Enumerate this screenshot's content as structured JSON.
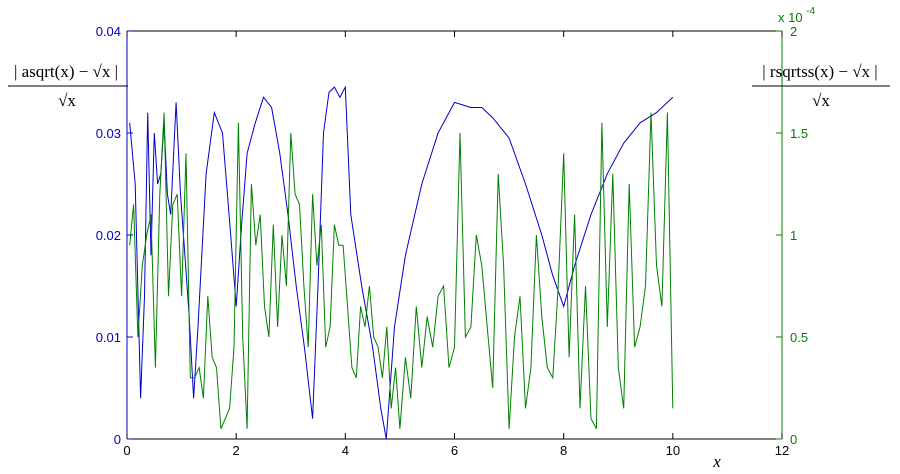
{
  "chart_data": {
    "type": "line",
    "xlabel": "x",
    "xlim": [
      0,
      12
    ],
    "x_ticks": [
      "0",
      "2",
      "4",
      "6",
      "8",
      "10",
      "12"
    ],
    "left_axis": {
      "ylim": [
        0,
        0.04
      ],
      "ticks": [
        "0",
        "0.01",
        "0.02",
        "0.03",
        "0.04"
      ],
      "color": "#0000cc",
      "label": {
        "numerator": "| asqrt(x) − √x |",
        "denominator": "√x"
      }
    },
    "right_axis": {
      "ylim": [
        0,
        2
      ],
      "ticks": [
        "0",
        "0.5",
        "1",
        "1.5",
        "2"
      ],
      "color": "#008000",
      "exponent": "x 10",
      "exponent_power": "-4",
      "label": {
        "numerator": "| rsqrtss(x) − √x |",
        "denominator": "√x"
      }
    },
    "series": [
      {
        "color": "#0000cc",
        "axis": "left",
        "x": [
          0.05,
          0.15,
          0.25,
          0.32,
          0.38,
          0.44,
          0.5,
          0.56,
          0.62,
          0.68,
          0.74,
          0.8,
          0.9,
          0.98,
          1.06,
          1.14,
          1.22,
          1.3,
          1.45,
          1.6,
          1.75,
          1.9,
          2.0,
          2.1,
          2.2,
          2.35,
          2.5,
          2.65,
          2.8,
          2.95,
          3.1,
          3.25,
          3.4,
          3.5,
          3.6,
          3.7,
          3.8,
          3.9,
          4.0,
          4.1,
          4.3,
          4.5,
          4.65,
          4.75,
          4.9,
          5.1,
          5.4,
          5.7,
          6.0,
          6.3,
          6.5,
          6.7,
          7.0,
          7.3,
          7.6,
          7.8,
          8.0,
          8.2,
          8.5,
          8.8,
          9.1,
          9.4,
          9.7,
          10.0
        ],
        "y": [
          0.031,
          0.025,
          0.004,
          0.014,
          0.032,
          0.018,
          0.03,
          0.025,
          0.026,
          0.031,
          0.024,
          0.022,
          0.033,
          0.024,
          0.018,
          0.012,
          0.004,
          0.011,
          0.026,
          0.032,
          0.03,
          0.02,
          0.013,
          0.021,
          0.028,
          0.031,
          0.0335,
          0.0325,
          0.028,
          0.022,
          0.015,
          0.009,
          0.002,
          0.015,
          0.03,
          0.034,
          0.0345,
          0.0335,
          0.0345,
          0.022,
          0.015,
          0.009,
          0.003,
          0.0,
          0.011,
          0.018,
          0.025,
          0.03,
          0.033,
          0.0325,
          0.0325,
          0.0315,
          0.0295,
          0.025,
          0.02,
          0.016,
          0.013,
          0.017,
          0.022,
          0.026,
          0.029,
          0.031,
          0.032,
          0.0335
        ]
      },
      {
        "color": "#008000",
        "axis": "right",
        "x": [
          0.05,
          0.12,
          0.2,
          0.28,
          0.36,
          0.44,
          0.52,
          0.6,
          0.68,
          0.76,
          0.84,
          0.92,
          1.0,
          1.08,
          1.16,
          1.24,
          1.32,
          1.4,
          1.48,
          1.56,
          1.64,
          1.72,
          1.8,
          1.88,
          1.96,
          2.04,
          2.12,
          2.2,
          2.28,
          2.36,
          2.44,
          2.52,
          2.6,
          2.68,
          2.76,
          2.84,
          2.92,
          3.0,
          3.08,
          3.16,
          3.24,
          3.32,
          3.4,
          3.48,
          3.56,
          3.64,
          3.72,
          3.8,
          3.88,
          3.96,
          4.04,
          4.12,
          4.2,
          4.28,
          4.36,
          4.44,
          4.52,
          4.6,
          4.68,
          4.76,
          4.84,
          4.92,
          5.0,
          5.1,
          5.2,
          5.3,
          5.4,
          5.5,
          5.6,
          5.7,
          5.8,
          5.9,
          6.0,
          6.1,
          6.2,
          6.3,
          6.4,
          6.5,
          6.6,
          6.7,
          6.8,
          6.9,
          7.0,
          7.1,
          7.2,
          7.3,
          7.4,
          7.5,
          7.6,
          7.7,
          7.8,
          7.9,
          8.0,
          8.1,
          8.2,
          8.3,
          8.4,
          8.5,
          8.6,
          8.7,
          8.8,
          8.9,
          9.0,
          9.1,
          9.2,
          9.3,
          9.4,
          9.5,
          9.6,
          9.7,
          9.8,
          9.9,
          10.0
        ],
        "y": [
          0.95,
          1.15,
          0.5,
          0.85,
          1.0,
          1.1,
          0.35,
          1.2,
          1.6,
          0.7,
          1.15,
          1.2,
          0.7,
          1.4,
          0.3,
          0.3,
          0.35,
          0.2,
          0.7,
          0.4,
          0.35,
          0.05,
          0.1,
          0.15,
          0.45,
          1.55,
          0.5,
          0.05,
          1.25,
          0.95,
          1.1,
          0.65,
          0.5,
          1.05,
          0.55,
          1.0,
          0.75,
          1.5,
          1.2,
          1.15,
          0.75,
          0.45,
          1.2,
          0.85,
          1.05,
          0.45,
          0.55,
          1.05,
          0.95,
          0.95,
          0.65,
          0.35,
          0.3,
          0.65,
          0.55,
          0.75,
          0.5,
          0.45,
          0.3,
          0.55,
          0.15,
          0.35,
          0.05,
          0.4,
          0.2,
          0.65,
          0.35,
          0.6,
          0.45,
          0.7,
          0.75,
          0.35,
          0.45,
          1.5,
          0.5,
          0.55,
          1.0,
          0.85,
          0.55,
          0.25,
          1.3,
          0.85,
          0.05,
          0.5,
          0.7,
          0.15,
          0.35,
          1.0,
          0.6,
          0.35,
          0.3,
          0.75,
          1.4,
          0.4,
          1.1,
          0.15,
          0.75,
          0.1,
          0.05,
          1.55,
          0.55,
          1.3,
          0.35,
          0.15,
          1.25,
          0.45,
          0.55,
          0.75,
          1.6,
          0.85,
          0.65,
          1.6,
          0.15
        ]
      }
    ]
  }
}
